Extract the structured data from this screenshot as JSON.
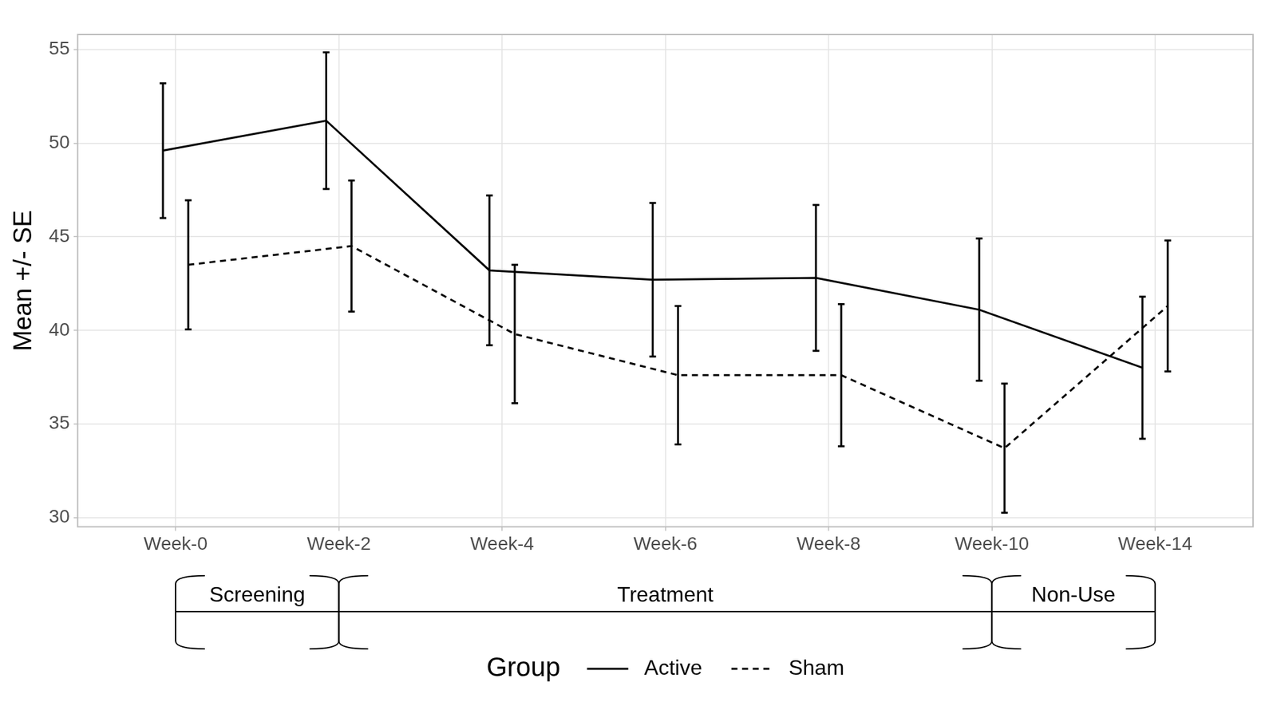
{
  "chart_data": {
    "type": "line",
    "y_label": "Mean +/- SE",
    "categories": [
      "Week-0",
      "Week-2",
      "Week-4",
      "Week-6",
      "Week-8",
      "Week-10",
      "Week-14"
    ],
    "series": [
      {
        "name": "Active",
        "color": "#000000",
        "line_style": "solid",
        "marker": "none",
        "values": [
          49.6,
          51.2,
          43.2,
          42.7,
          42.8,
          41.1,
          38.0
        ],
        "se": [
          3.6,
          3.65,
          4.0,
          4.1,
          3.9,
          3.8,
          3.8
        ]
      },
      {
        "name": "Sham",
        "color": "#000000",
        "line_style": "dashed",
        "marker": "none",
        "values": [
          43.5,
          44.5,
          39.8,
          37.6,
          37.6,
          33.7,
          41.3
        ],
        "se": [
          3.45,
          3.5,
          3.7,
          3.7,
          3.8,
          3.45,
          3.5
        ]
      }
    ],
    "phases": [
      {
        "label": "Screening",
        "start": "Week-0",
        "end": "Week-2"
      },
      {
        "label": "Treatment",
        "start": "Week-2",
        "end": "Week-10"
      },
      {
        "label": "Non-Use",
        "start": "Week-10",
        "end": "Week-14"
      }
    ],
    "ylim": [
      29.5,
      55.8
    ],
    "yticks": [
      30,
      35,
      40,
      45,
      50,
      55
    ],
    "grid": true,
    "legend": "bottom",
    "legend_title": "Group"
  }
}
